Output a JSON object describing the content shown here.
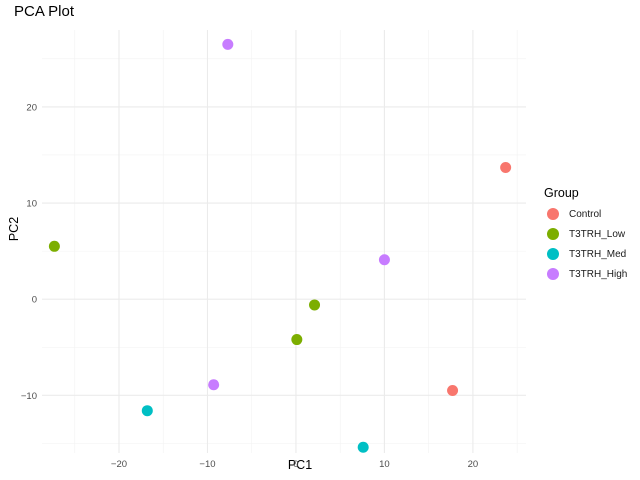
{
  "chart_data": {
    "type": "scatter",
    "title": "PCA Plot",
    "xlabel": "PC1",
    "ylabel": "PC2",
    "xlim": [
      -28.7,
      26.0
    ],
    "ylim": [
      -16.0,
      28.0
    ],
    "x_ticks": [
      -20,
      -10,
      0,
      10,
      20
    ],
    "y_ticks": [
      -10,
      0,
      10,
      20
    ],
    "grid": true,
    "legend": {
      "title": "Group",
      "position": "right"
    },
    "series": [
      {
        "name": "Control",
        "color": "#F8766D",
        "points": [
          {
            "x": 23.7,
            "y": 13.7
          },
          {
            "x": 17.7,
            "y": -9.5
          }
        ]
      },
      {
        "name": "T3TRH_Low",
        "color": "#7CAE00",
        "points": [
          {
            "x": -27.3,
            "y": 5.5
          },
          {
            "x": 2.1,
            "y": -0.6
          },
          {
            "x": 0.1,
            "y": -4.2
          }
        ]
      },
      {
        "name": "T3TRH_Med",
        "color": "#00BFC4",
        "points": [
          {
            "x": -16.8,
            "y": -11.6
          },
          {
            "x": 7.6,
            "y": -15.4
          }
        ]
      },
      {
        "name": "T3TRH_High",
        "color": "#C77CFF",
        "points": [
          {
            "x": -7.7,
            "y": 26.5
          },
          {
            "x": 10.0,
            "y": 4.1
          },
          {
            "x": -9.3,
            "y": -8.9
          }
        ]
      }
    ]
  }
}
